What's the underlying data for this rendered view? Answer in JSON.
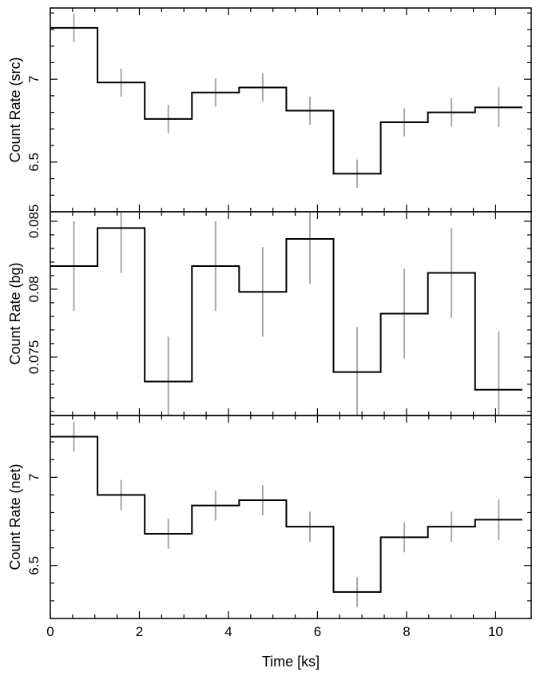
{
  "chart_data": {
    "type": "line",
    "xlabel": "Time [ks]",
    "xlim": [
      0,
      10.8
    ],
    "x_ticks": [
      0,
      2,
      4,
      6,
      8,
      10
    ],
    "bin_edges": [
      0,
      1.06,
      2.12,
      3.18,
      4.24,
      5.3,
      6.36,
      7.42,
      8.48,
      9.54,
      10.6
    ],
    "panels": [
      {
        "name": "src",
        "ylabel": "Count Rate (src)",
        "ylim": [
          6.2,
          7.43
        ],
        "y_ticks": [
          6.5,
          7
        ],
        "values": [
          7.31,
          6.98,
          6.76,
          6.92,
          6.95,
          6.81,
          6.43,
          6.74,
          6.8,
          6.83
        ],
        "errors": [
          0.085,
          0.085,
          0.085,
          0.085,
          0.085,
          0.085,
          0.085,
          0.085,
          0.085,
          0.12
        ]
      },
      {
        "name": "bg",
        "ylabel": "Count Rate (bg)",
        "ylim": [
          0.0707,
          0.0857
        ],
        "y_ticks": [
          0.075,
          0.08,
          0.085
        ],
        "values": [
          0.0817,
          0.0845,
          0.0732,
          0.0817,
          0.0798,
          0.0837,
          0.0739,
          0.0782,
          0.0812,
          0.0726
        ],
        "errors": [
          0.0033,
          0.0033,
          0.0033,
          0.0033,
          0.0033,
          0.0033,
          0.0033,
          0.0033,
          0.0033,
          0.0043
        ]
      },
      {
        "name": "net",
        "ylabel": "Count Rate (net)",
        "ylim": [
          6.2,
          7.35
        ],
        "y_ticks": [
          6.5,
          7
        ],
        "values": [
          7.23,
          6.9,
          6.68,
          6.84,
          6.87,
          6.72,
          6.35,
          6.66,
          6.72,
          6.76
        ],
        "errors": [
          0.085,
          0.085,
          0.085,
          0.085,
          0.085,
          0.085,
          0.085,
          0.085,
          0.085,
          0.115
        ]
      }
    ],
    "grid": false,
    "colors": {
      "step_line": "#000000",
      "error_bar": "#a8a8a8",
      "frame": "#000000"
    }
  }
}
